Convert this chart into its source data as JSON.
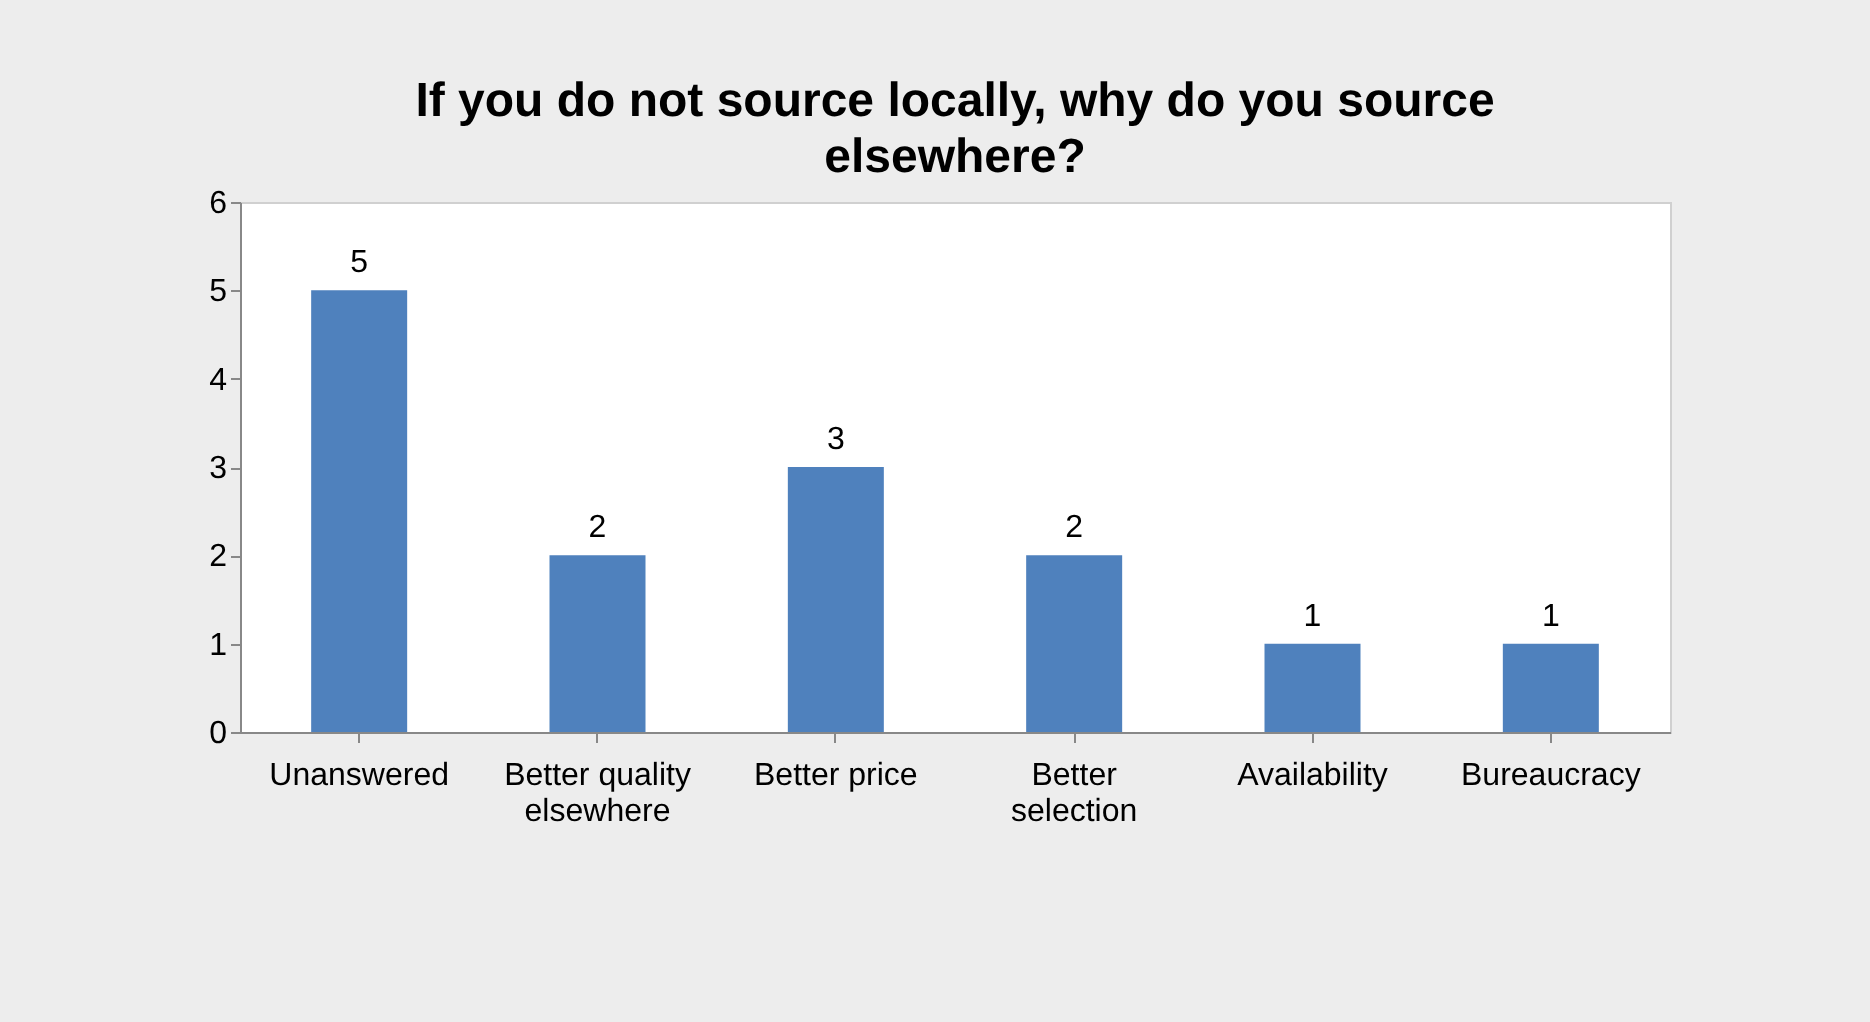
{
  "chart_data": {
    "type": "bar",
    "title": "If you do not source locally, why do you source elsewhere?",
    "categories": [
      "Unanswered",
      "Better quality elsewhere",
      "Better price",
      "Better selection",
      "Availability",
      "Bureaucracy"
    ],
    "values": [
      5,
      2,
      3,
      2,
      1,
      1
    ],
    "color": "#4f81bd",
    "ylim": [
      0,
      6
    ],
    "yticks": [
      0,
      1,
      2,
      3,
      4,
      5,
      6
    ],
    "data_labels": true,
    "grid": false
  }
}
